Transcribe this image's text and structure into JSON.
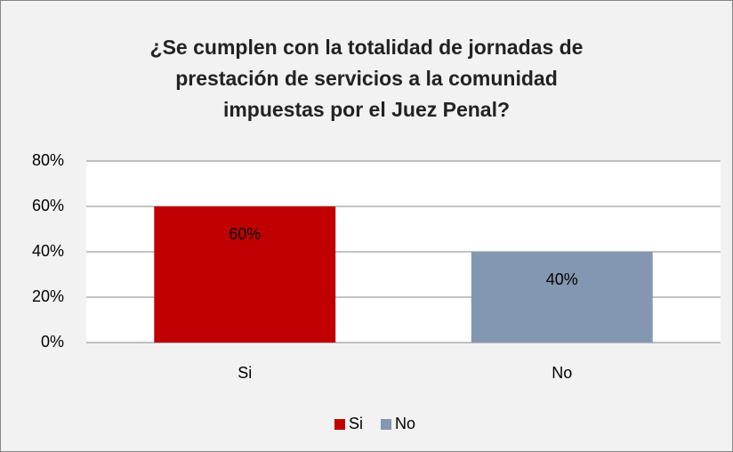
{
  "chart_data": {
    "type": "bar",
    "title": "¿Se cumplen con la totalidad de jornadas de\nprestación de servicios a la comunidad\nimpuestas por el Juez Penal?",
    "categories": [
      "Si",
      "No"
    ],
    "values": [
      60,
      40
    ],
    "value_labels": [
      "60%",
      "40%"
    ],
    "colors": [
      "#c00000",
      "#8497b0"
    ],
    "ylim": [
      0,
      80
    ],
    "yticks": [
      {
        "value": 0,
        "label": "0%"
      },
      {
        "value": 20,
        "label": "20%"
      },
      {
        "value": 40,
        "label": "40%"
      },
      {
        "value": 60,
        "label": "60%"
      },
      {
        "value": 80,
        "label": "80%"
      }
    ],
    "grid": true,
    "legend": "bottom"
  }
}
